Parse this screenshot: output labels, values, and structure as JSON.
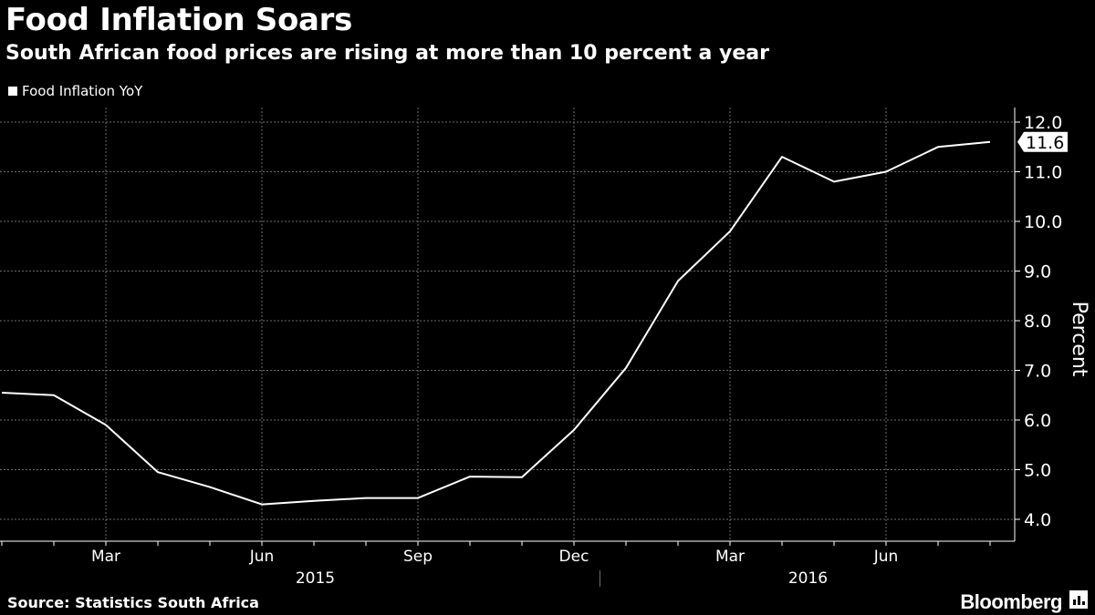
{
  "header": {
    "title": "Food Inflation Soars",
    "subtitle": "South African food prices are rising at more than 10 percent a year"
  },
  "legend": {
    "label": "Food Inflation YoY"
  },
  "footer": {
    "source": "Source: Statistics South Africa",
    "brand": "Bloomberg"
  },
  "colors": {
    "background": "#000000",
    "line": "#ffffff",
    "grid": "#6b6b6b"
  },
  "chart_data": {
    "type": "line",
    "title": "Food Inflation Soars",
    "subtitle": "South African food prices are rising at more than 10 percent a year",
    "xlabel": "",
    "ylabel": "Percent",
    "ylim": [
      3.6,
      12.3
    ],
    "yticks": [
      4.0,
      5.0,
      6.0,
      7.0,
      8.0,
      9.0,
      10.0,
      11.0,
      12.0
    ],
    "ytick_labels": [
      "4.0",
      "5.0",
      "6.0",
      "7.0",
      "8.0",
      "9.0",
      "10.0",
      "11.0",
      "12.0"
    ],
    "x": [
      "2015-01",
      "2015-02",
      "2015-03",
      "2015-04",
      "2015-05",
      "2015-06",
      "2015-07",
      "2015-08",
      "2015-09",
      "2015-10",
      "2015-11",
      "2015-12",
      "2016-01",
      "2016-02",
      "2016-03",
      "2016-04",
      "2016-05",
      "2016-06",
      "2016-07",
      "2016-08"
    ],
    "month_ticks": [
      "Mar",
      "Jun",
      "Sep",
      "Dec",
      "Mar",
      "Jun"
    ],
    "month_tick_index": [
      2,
      5,
      8,
      11,
      14,
      17
    ],
    "year_labels": [
      "2015",
      "2016"
    ],
    "series": [
      {
        "name": "Food Inflation YoY",
        "values": [
          6.55,
          6.5,
          5.9,
          4.95,
          4.65,
          4.3,
          4.37,
          4.43,
          4.43,
          4.86,
          4.85,
          5.8,
          7.05,
          8.8,
          9.8,
          11.3,
          10.8,
          11.0,
          11.5,
          11.6
        ]
      }
    ],
    "last_value_label": "11.6",
    "grid": true,
    "legend_position": "top-left"
  }
}
